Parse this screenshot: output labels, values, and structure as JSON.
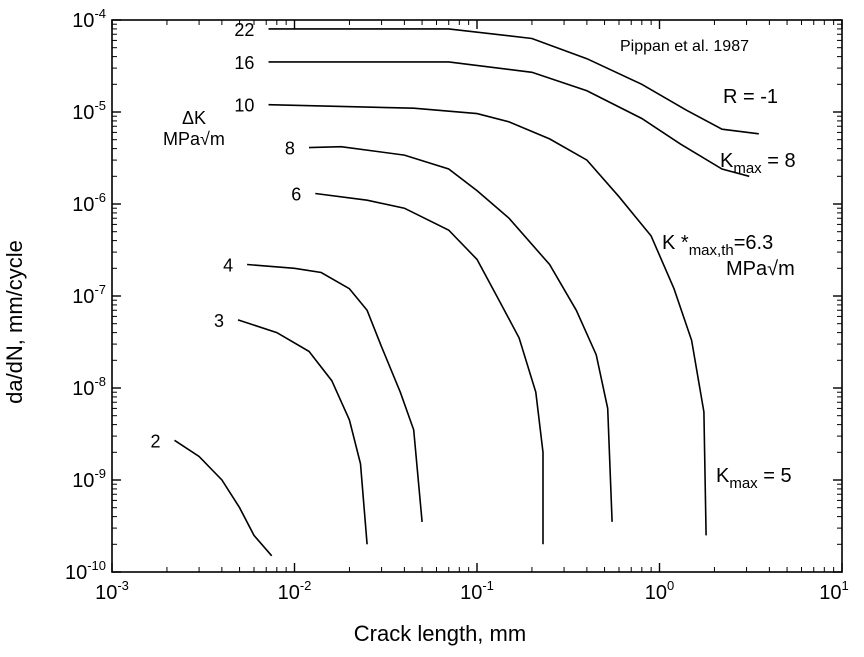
{
  "chart_data": {
    "type": "line",
    "xlabel": "Crack length, mm",
    "ylabel": "da/dN, mm/cycle",
    "x_scale": "log",
    "y_scale": "log",
    "xlim": [
      0.001,
      10
    ],
    "ylim": [
      1e-10,
      0.0001
    ],
    "x_ticks": [
      {
        "base": "10",
        "exp": "-3",
        "value": 0.001
      },
      {
        "base": "10",
        "exp": "-2",
        "value": 0.01
      },
      {
        "base": "10",
        "exp": "-1",
        "value": 0.1
      },
      {
        "base": "10",
        "exp": "0",
        "value": 1
      },
      {
        "base": "10",
        "exp": "1",
        "value": 10
      }
    ],
    "y_ticks": [
      {
        "base": "10",
        "exp": "-4",
        "value": 0.0001
      },
      {
        "base": "10",
        "exp": "-5",
        "value": 1e-05
      },
      {
        "base": "10",
        "exp": "-6",
        "value": 1e-06
      },
      {
        "base": "10",
        "exp": "-7",
        "value": 1e-07
      },
      {
        "base": "10",
        "exp": "-8",
        "value": 1e-08
      },
      {
        "base": "10",
        "exp": "-9",
        "value": 1e-09
      },
      {
        "base": "10",
        "exp": "-10",
        "value": 1e-10
      }
    ],
    "grid": false,
    "legend": "none",
    "series_label_header": {
      "line1": "ΔK",
      "line2": "MPa√m"
    },
    "annotations": {
      "source": "Pippan et al. 1987",
      "r_ratio": "R = -1",
      "kmax8": {
        "base": "K",
        "sub": "max",
        "rest": " = 8"
      },
      "kstar_line1": {
        "base": "K *",
        "sub": "max,th",
        "rest": "=6.3"
      },
      "kstar_line2": "MPa√m",
      "kmax5": {
        "base": "K",
        "sub": "max",
        "rest": " = 5"
      }
    },
    "series": [
      {
        "label": "22",
        "points": [
          [
            0.0072,
            8e-05
          ],
          [
            0.07,
            8e-05
          ],
          [
            0.2,
            6.3e-05
          ],
          [
            0.4,
            3.8e-05
          ],
          [
            0.8,
            2e-05
          ],
          [
            1.4,
            1.05e-05
          ],
          [
            2.2,
            6.5e-06
          ],
          [
            3.5,
            5.8e-06
          ]
        ]
      },
      {
        "label": "16",
        "points": [
          [
            0.0072,
            3.5e-05
          ],
          [
            0.07,
            3.5e-05
          ],
          [
            0.2,
            2.7e-05
          ],
          [
            0.4,
            1.7e-05
          ],
          [
            0.8,
            8.5e-06
          ],
          [
            1.3,
            4.5e-06
          ],
          [
            2.2,
            2.4e-06
          ],
          [
            3.1,
            2e-06
          ]
        ]
      },
      {
        "label": "10",
        "points": [
          [
            0.0072,
            1.2e-05
          ],
          [
            0.045,
            1.1e-05
          ],
          [
            0.1,
            9.6e-06
          ],
          [
            0.15,
            7.8e-06
          ],
          [
            0.25,
            5.1e-06
          ],
          [
            0.4,
            3e-06
          ],
          [
            0.6,
            1.2e-06
          ],
          [
            0.9,
            4.5e-07
          ],
          [
            1.2,
            1.2e-07
          ],
          [
            1.5,
            3.3e-08
          ],
          [
            1.75,
            5.5e-09
          ],
          [
            1.8,
            2.5e-10
          ]
        ]
      },
      {
        "label": "8",
        "points": [
          [
            0.012,
            4.1e-06
          ],
          [
            0.018,
            4.2e-06
          ],
          [
            0.04,
            3.4e-06
          ],
          [
            0.07,
            2.4e-06
          ],
          [
            0.1,
            1.4e-06
          ],
          [
            0.15,
            7e-07
          ],
          [
            0.25,
            2.2e-07
          ],
          [
            0.35,
            7e-08
          ],
          [
            0.45,
            2.3e-08
          ],
          [
            0.52,
            6e-09
          ],
          [
            0.55,
            3.5e-10
          ]
        ]
      },
      {
        "label": "6",
        "points": [
          [
            0.013,
            1.3e-06
          ],
          [
            0.025,
            1.1e-06
          ],
          [
            0.04,
            9e-07
          ],
          [
            0.07,
            5.2e-07
          ],
          [
            0.1,
            2.5e-07
          ],
          [
            0.13,
            9.5e-08
          ],
          [
            0.17,
            3.5e-08
          ],
          [
            0.21,
            9e-09
          ],
          [
            0.23,
            2e-09
          ],
          [
            0.23,
            2e-10
          ]
        ]
      },
      {
        "label": "4",
        "points": [
          [
            0.0055,
            2.2e-07
          ],
          [
            0.01,
            2e-07
          ],
          [
            0.014,
            1.8e-07
          ],
          [
            0.02,
            1.2e-07
          ],
          [
            0.025,
            7e-08
          ],
          [
            0.03,
            2.8e-08
          ],
          [
            0.038,
            9e-09
          ],
          [
            0.045,
            3.5e-09
          ],
          [
            0.05,
            3.5e-10
          ]
        ]
      },
      {
        "label": "3",
        "points": [
          [
            0.0049,
            5.5e-08
          ],
          [
            0.008,
            4e-08
          ],
          [
            0.012,
            2.5e-08
          ],
          [
            0.016,
            1.2e-08
          ],
          [
            0.02,
            4.5e-09
          ],
          [
            0.023,
            1.5e-09
          ],
          [
            0.025,
            2e-10
          ]
        ]
      },
      {
        "label": "2",
        "points": [
          [
            0.0022,
            2.7e-09
          ],
          [
            0.003,
            1.8e-09
          ],
          [
            0.004,
            1e-09
          ],
          [
            0.005,
            5e-10
          ],
          [
            0.006,
            2.5e-10
          ],
          [
            0.0075,
            1.5e-10
          ]
        ]
      }
    ]
  }
}
